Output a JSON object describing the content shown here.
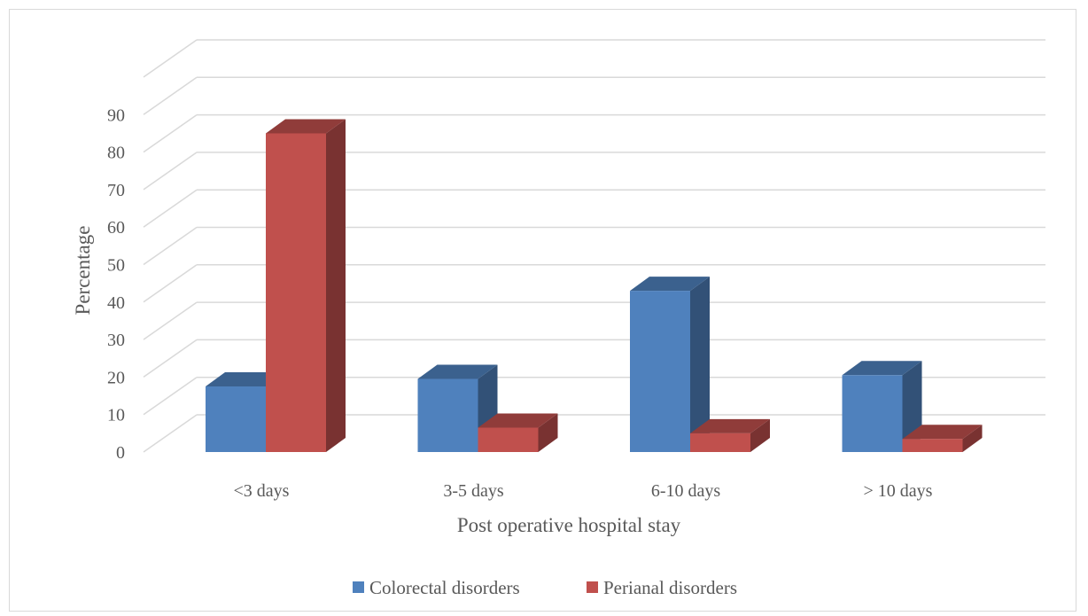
{
  "chart_data": {
    "type": "bar",
    "title": "",
    "xlabel": "Post operative hospital stay",
    "ylabel": "Percentage",
    "categories": [
      "<3 days",
      "3-5 days",
      "6-10 days",
      "> 10 days"
    ],
    "series": [
      {
        "name": "Colorectal disorders",
        "values": [
          17.5,
          19.5,
          43,
          20.5
        ],
        "color": "#4f81bd"
      },
      {
        "name": "Perianal disorders",
        "values": [
          85,
          6.5,
          5,
          3.5
        ],
        "color": "#c0504d"
      }
    ],
    "ylim": [
      0,
      90
    ],
    "yticks": [
      "0",
      "10",
      "20",
      "30",
      "40",
      "50",
      "60",
      "70",
      "80",
      "90"
    ],
    "grid": true,
    "legend": "bottom",
    "style": "3d-clustered-column"
  }
}
